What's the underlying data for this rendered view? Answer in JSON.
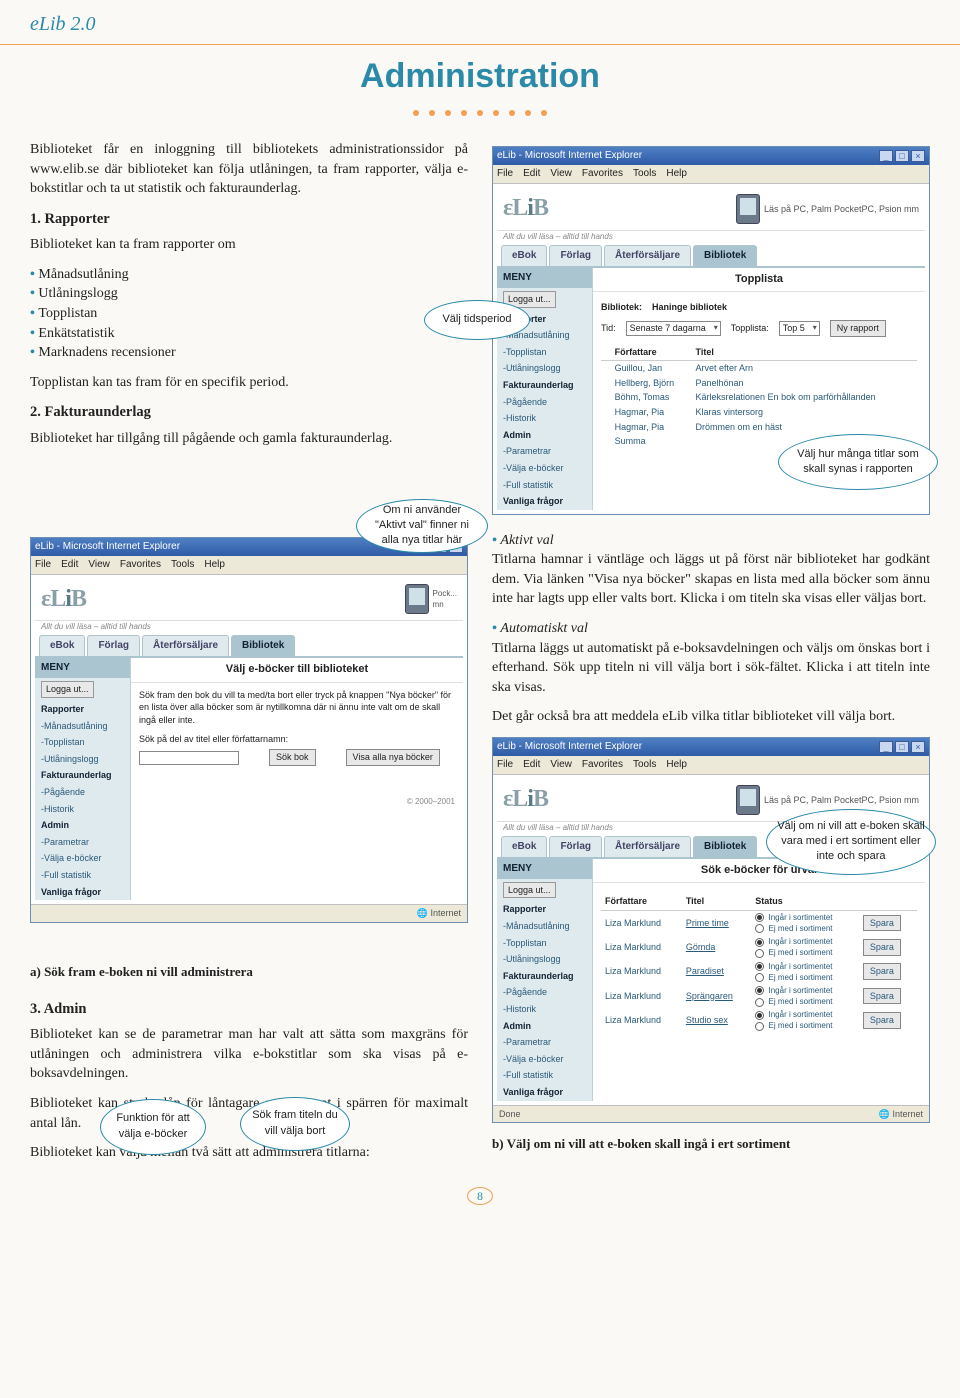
{
  "page": {
    "header": "eLib 2.0",
    "title": "Administration",
    "number": "8",
    "dot_count": 9
  },
  "intro_p": "Biblioteket får en inloggning till bibliotekets administrationssidor på www.elib.se där biblioteket kan följa utlåningen, ta fram rapporter, välja e-bokstitlar och ta ut statistik och fakturaunderlag.",
  "sec1": {
    "h": "1. Rapporter",
    "lead": "Biblioteket kan ta fram rapporter om",
    "items": [
      "Månadsutlåning",
      "Utlåningslogg",
      "Topplistan",
      "Enkätstatistik",
      "Marknadens recensioner"
    ],
    "tail": "Topplistan kan tas fram för en specifik period."
  },
  "sec2": {
    "h": "2. Fakturaunderlag",
    "p": "Biblioteket har tillgång till pågående och gamla fakturaunderlag."
  },
  "callouts": {
    "c1": "Välj tidsperiod",
    "c2": "Välj hur många titlar som skall synas i rapporten",
    "c3": "Om ni använder \"Aktivt val\" finner ni alla nya titlar här",
    "c4": "Funktion för att välja e-böcker",
    "c5": "Sök fram titeln du vill välja bort",
    "c6": "Välj om ni vill att e-boken skall vara med i ert sortiment eller inte och spara"
  },
  "caption_a": "a) Sök fram e-boken ni vill administrera",
  "caption_b": "b) Välj om ni vill att e-boken skall ingå i ert sortiment",
  "aktivt": {
    "h": "Aktivt val",
    "p": "Titlarna hamnar i väntläge och läggs ut på först när biblioteket har godkänt dem. Via länken \"Visa nya böcker\" skapas en lista med alla böcker som ännu inte har lagts upp eller valts bort. Klicka i om titeln ska visas eller väljas bort."
  },
  "automatiskt": {
    "h": "Automatiskt val",
    "p": "Titlarna läggs ut automatiskt på e-boksavdelningen och väljs om önskas bort i efterhand. Sök upp titeln ni vill välja bort i sök-fältet. Klicka i att titeln inte ska visas."
  },
  "det_gar": "Det går också bra att meddela eLib vilka titlar biblioteket vill välja bort.",
  "sec3": {
    "h": "3. Admin",
    "p1": "Biblioteket kan se de parametrar man har valt att sätta som maxgräns för utlåningen och administrera vilka e-bokstitlar som ska visas på e-boksavdelningen.",
    "p2": "Biblioteket kan stryka lån för låntagare som fastnat i spärren för maximalt antal lån.",
    "p3": "Biblioteket kan välja mellan två sätt att administrera titlarna:"
  },
  "ie": {
    "title": "eLib - Microsoft Internet Explorer",
    "menus": [
      "File",
      "Edit",
      "View",
      "Favorites",
      "Tools",
      "Help"
    ],
    "tagline": "Allt du vill läsa – alltid till hands",
    "promo": "Läs på PC, Palm PocketPC, Psion mm",
    "tabs": [
      "eBok",
      "Förlag",
      "Återförsäljare",
      "Bibliotek"
    ],
    "menu_header": "MENY",
    "logga_ut": "Logga ut...",
    "menu_items": [
      "Rapporter",
      "-Månadsutlåning",
      "-Topplistan",
      "-Utlåningslogg",
      "Fakturaunderlag",
      "-Pågående",
      "-Historik",
      "Admin",
      "-Parametrar",
      "-Välja e-böcker",
      "-Full statistik",
      "Vanliga frågor"
    ],
    "status_done": "Done",
    "status_net": "Internet",
    "copyright": "© 2000–2001"
  },
  "shot1": {
    "main_title": "Topplista",
    "bibliotek_lbl": "Bibliotek:",
    "bibliotek_val": "Haninge bibliotek",
    "tid_lbl": "Tid:",
    "tid_val": "Senaste 7 dagarna",
    "topplista_lbl": "Topplista:",
    "topplista_val": "Top 5",
    "ny_rapport": "Ny rapport",
    "cols": [
      "",
      "Författare",
      "Titel"
    ],
    "rows": [
      [
        "",
        "Guillou, Jan",
        "Arvet efter Arn"
      ],
      [
        "",
        "Hellberg, Björn",
        "Panelhönan"
      ],
      [
        "",
        "Böhm, Tomas",
        "Kärleksrelationen En bok om parförhållanden"
      ],
      [
        "",
        "Hagmar, Pia",
        "Klaras vintersorg"
      ],
      [
        "",
        "Hagmar, Pia",
        "Drömmen om en häst"
      ],
      [
        "",
        "Summa",
        ""
      ]
    ]
  },
  "shot2": {
    "main_title": "Välj e-böcker till biblioteket",
    "desc": "Sök fram den bok du vill ta med/ta bort eller tryck på knappen \"Nya böcker\" för en lista över alla böcker som är nytillkomna där ni ännu inte valt om de skall ingå eller inte.",
    "sok_instr": "Sök på del av titel eller författarnamn:",
    "sok_btn": "Sök bok",
    "nya_btn": "Visa alla nya böcker"
  },
  "shot3": {
    "main_title": "Sök e-böcker för urval",
    "cols": [
      "Författare",
      "Titel",
      "Status",
      ""
    ],
    "opt_in": "Ingår i sortimentet",
    "opt_out": "Ej med i sortiment",
    "spara": "Spara",
    "rows": [
      [
        "Liza Marklund",
        "Prime time"
      ],
      [
        "Liza Marklund",
        "Gömda"
      ],
      [
        "Liza Marklund",
        "Paradiset"
      ],
      [
        "Liza Marklund",
        "Sprängaren"
      ],
      [
        "Liza Marklund",
        "Studio sex"
      ]
    ]
  },
  "colors": {
    "accent": "#2a8aa8",
    "orange": "#f0a050",
    "bg": "#faf9f5"
  }
}
